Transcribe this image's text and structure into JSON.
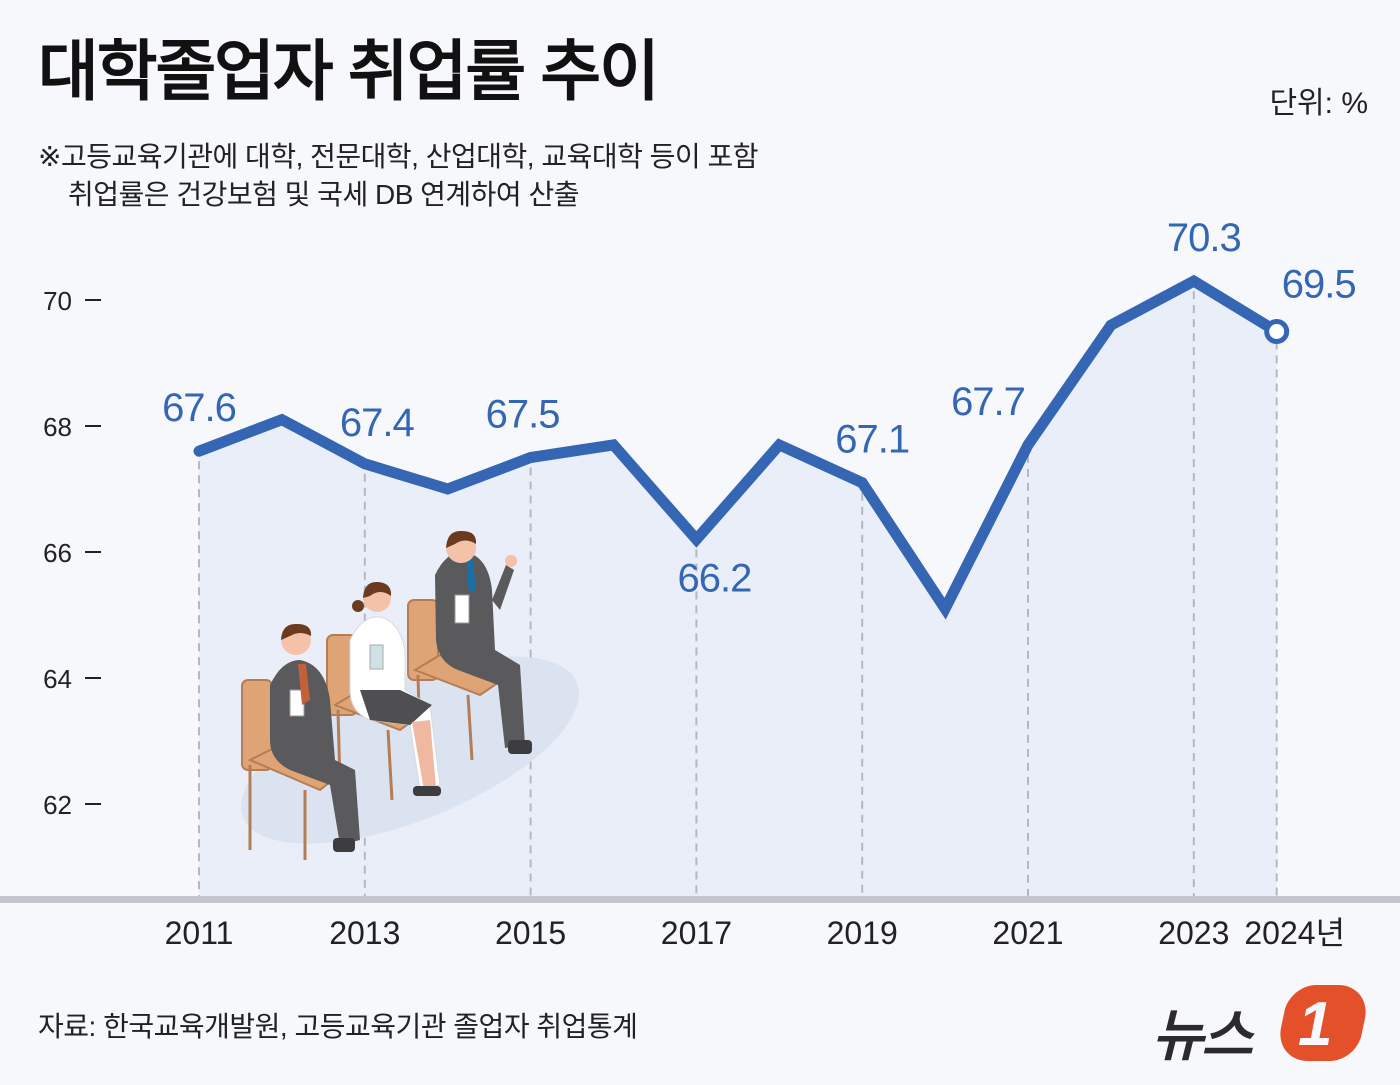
{
  "header": {
    "title": "대학졸업자 취업률 추이",
    "unit": "단위: %",
    "note_line1": "※고등교육기관에 대학, 전문대학, 산업대학, 교육대학 등이 포함",
    "note_line2": "취업률은 건강보험 및 국세 DB 연계하여 산출"
  },
  "footer": {
    "source": "자료: 한국교육개발원, 고등교육기관 졸업자 취업통계",
    "logo_text": "뉴스",
    "logo_mark": "1"
  },
  "colors": {
    "line": "#3566b3",
    "area": "#e9eef8",
    "label": "#3566b3",
    "logo_accent": "#e4502a"
  },
  "chart_data": {
    "type": "line",
    "title": "대학졸업자 취업률 추이",
    "xlabel": "",
    "ylabel": "단위: %",
    "ylim": [
      60.5,
      71
    ],
    "yticks": [
      62,
      64,
      66,
      68,
      70
    ],
    "x": [
      2011,
      2012,
      2013,
      2014,
      2015,
      2016,
      2017,
      2018,
      2019,
      2020,
      2021,
      2022,
      2023,
      2024
    ],
    "xtick_labels": [
      "2011",
      "2013",
      "2015",
      "2017",
      "2019",
      "2021",
      "2023",
      "2024년"
    ],
    "series": [
      {
        "name": "취업률",
        "values": [
          67.6,
          68.1,
          67.4,
          67.0,
          67.5,
          67.7,
          66.2,
          67.7,
          67.1,
          65.1,
          67.7,
          69.6,
          70.3,
          69.5
        ]
      }
    ],
    "labeled_points": [
      {
        "year": 2011,
        "label": "67.6"
      },
      {
        "year": 2013,
        "label": "67.4"
      },
      {
        "year": 2015,
        "label": "67.5"
      },
      {
        "year": 2017,
        "label": "66.2"
      },
      {
        "year": 2019,
        "label": "67.1"
      },
      {
        "year": 2021,
        "label": "67.7"
      },
      {
        "year": 2023,
        "label": "70.3"
      },
      {
        "year": 2024,
        "label": "69.5"
      }
    ],
    "grid": false,
    "legend": "none"
  }
}
